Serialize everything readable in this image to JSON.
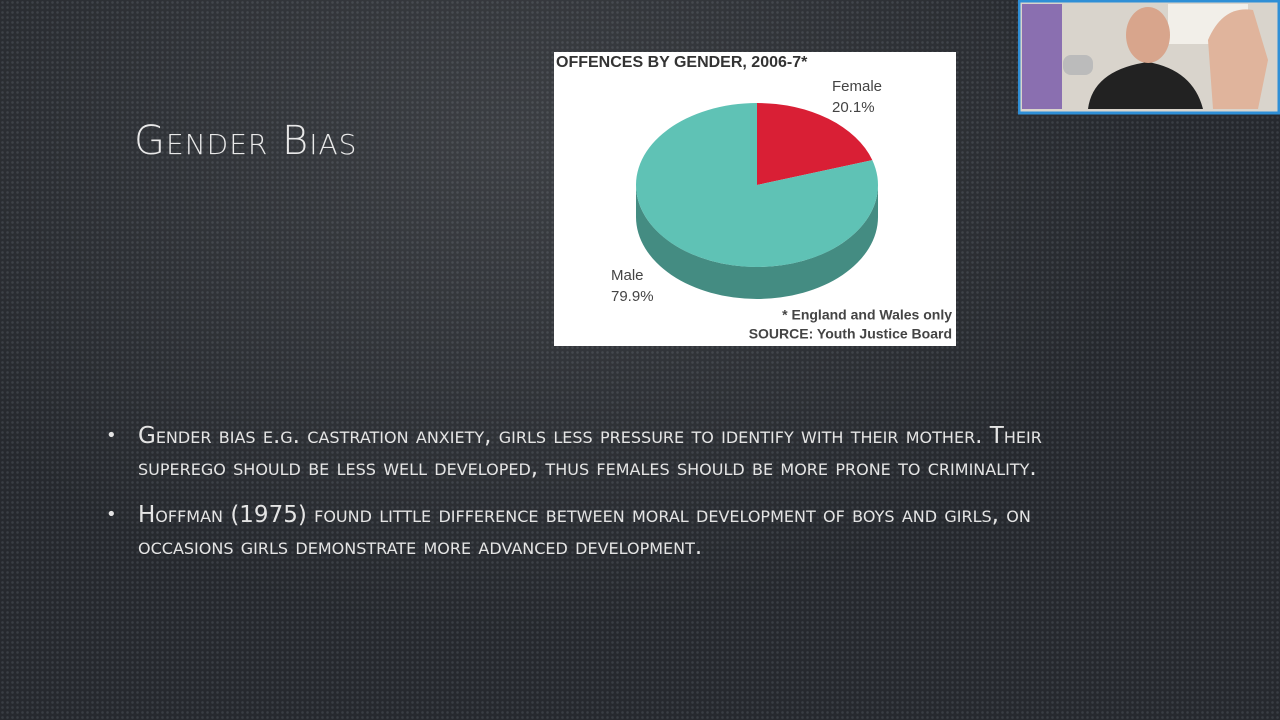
{
  "slide": {
    "title": "Gender Bias",
    "bullets": [
      "Gender bias e.g. castration anxiety, girls less pressure to identify with their mother. Their superego should be less well developed, thus females should be more prone to criminality.",
      "Hoffman (1975) found little difference between moral development of boys and girls, on occasions girls demonstrate more advanced development."
    ]
  },
  "chart_data": {
    "type": "pie",
    "title": "OFFENCES BY GENDER, 2006-7*",
    "categories": [
      "Female",
      "Male"
    ],
    "values": [
      20.1,
      79.9
    ],
    "value_labels": [
      "20.1%",
      "79.9%"
    ],
    "colors": [
      "#d91f35",
      "#5fc2b5"
    ],
    "notes": [
      "* England and Wales only",
      "SOURCE: Youth Justice Board"
    ]
  }
}
